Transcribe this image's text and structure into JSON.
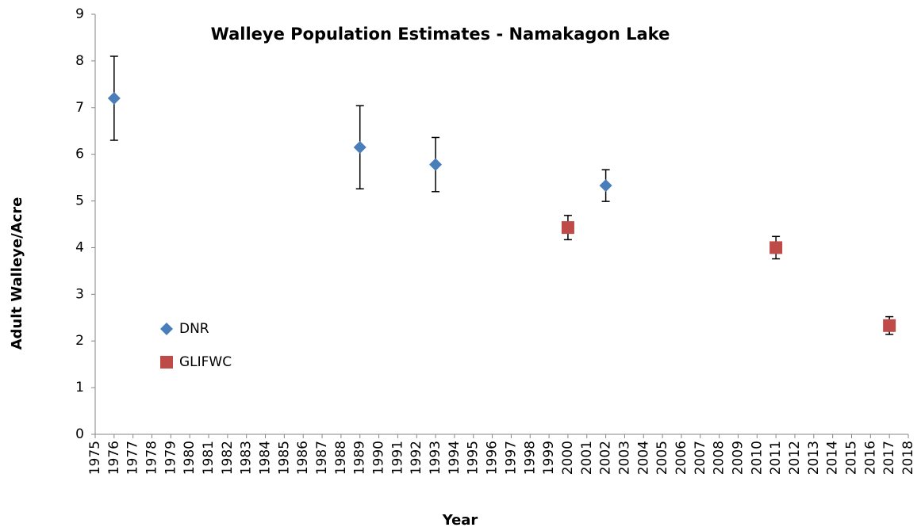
{
  "chart_data": {
    "type": "scatter",
    "title": "Walleye Population Estimates - Namakagon Lake",
    "xlabel": "Year",
    "ylabel": "Adult Walleye/Acre",
    "xlim": [
      1975,
      2018
    ],
    "xticks": [
      1975,
      1976,
      1977,
      1978,
      1979,
      1980,
      1981,
      1982,
      1983,
      1984,
      1985,
      1986,
      1987,
      1988,
      1989,
      1990,
      1991,
      1992,
      1993,
      1994,
      1995,
      1996,
      1997,
      1998,
      1999,
      2000,
      2001,
      2002,
      2003,
      2004,
      2005,
      2006,
      2007,
      2008,
      2009,
      2010,
      2011,
      2012,
      2013,
      2014,
      2015,
      2016,
      2017,
      2018
    ],
    "ylim": [
      0,
      9
    ],
    "yticks": [
      0,
      1,
      2,
      3,
      4,
      5,
      6,
      7,
      8,
      9
    ],
    "grid": false,
    "legend": "left",
    "series": [
      {
        "name": "DNR",
        "color": "#4a7ebb",
        "marker": "diamond",
        "x": [
          1976,
          1989,
          1993,
          2002
        ],
        "values": [
          7.2,
          6.15,
          5.78,
          5.33
        ],
        "errors": [
          0.9,
          0.89,
          0.58,
          0.34
        ]
      },
      {
        "name": "GLIFWC",
        "color": "#be4b48",
        "marker": "square",
        "x": [
          2000,
          2011,
          2017
        ],
        "values": [
          4.43,
          4.0,
          2.33
        ],
        "errors": [
          0.26,
          0.24,
          0.19
        ]
      }
    ]
  }
}
